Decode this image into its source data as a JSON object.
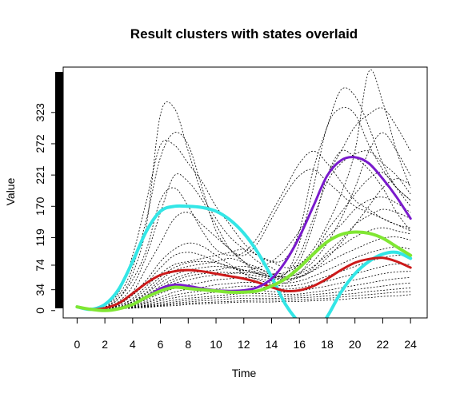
{
  "chart_data": {
    "type": "line",
    "title": "Result clusters with states overlaid",
    "xlabel": "Time",
    "ylabel": "Value",
    "xlim": [
      -1,
      25.2
    ],
    "ylim": [
      -12,
      397
    ],
    "x_ticks": [
      0,
      2,
      4,
      6,
      8,
      10,
      12,
      14,
      16,
      18,
      20,
      22,
      24
    ],
    "y_ticks": [
      0,
      34,
      74,
      119,
      170,
      221,
      272,
      323
    ],
    "x": [
      0,
      1,
      2,
      3,
      4,
      5,
      6,
      7,
      8,
      9,
      10,
      11,
      12,
      13,
      14,
      15,
      16,
      17,
      18,
      19,
      20,
      21,
      22,
      23,
      24
    ],
    "background_series": [
      [
        5,
        3,
        6,
        20,
        60,
        140,
        320,
        330,
        260,
        190,
        150,
        120,
        100,
        80,
        70,
        60,
        110,
        200,
        300,
        330,
        320,
        270,
        230,
        200,
        180
      ],
      [
        5,
        4,
        8,
        30,
        90,
        180,
        270,
        270,
        240,
        210,
        170,
        140,
        110,
        90,
        80,
        85,
        130,
        230,
        300,
        360,
        350,
        300,
        240,
        200,
        170
      ],
      [
        5,
        3,
        5,
        15,
        40,
        90,
        160,
        220,
        210,
        180,
        140,
        100,
        80,
        70,
        60,
        55,
        80,
        140,
        220,
        260,
        250,
        230,
        200,
        160,
        130
      ],
      [
        5,
        2,
        4,
        10,
        30,
        70,
        110,
        150,
        160,
        140,
        120,
        100,
        80,
        60,
        55,
        60,
        90,
        150,
        210,
        240,
        255,
        260,
        240,
        220,
        190
      ],
      [
        5,
        3,
        5,
        12,
        28,
        50,
        80,
        100,
        110,
        105,
        90,
        75,
        60,
        50,
        45,
        45,
        60,
        90,
        130,
        160,
        190,
        215,
        225,
        200,
        180
      ],
      [
        5,
        3,
        4,
        8,
        20,
        40,
        60,
        75,
        80,
        85,
        90,
        95,
        100,
        90,
        80,
        70,
        75,
        95,
        120,
        140,
        165,
        180,
        185,
        175,
        160
      ],
      [
        5,
        2,
        3,
        6,
        15,
        30,
        50,
        65,
        72,
        76,
        80,
        85,
        78,
        65,
        55,
        50,
        55,
        70,
        95,
        115,
        140,
        155,
        165,
        160,
        150
      ],
      [
        5,
        2,
        3,
        6,
        14,
        25,
        40,
        52,
        60,
        64,
        66,
        70,
        72,
        68,
        60,
        55,
        60,
        72,
        90,
        105,
        120,
        130,
        135,
        130,
        125
      ],
      [
        5,
        2,
        3,
        5,
        12,
        20,
        32,
        44,
        50,
        55,
        58,
        60,
        62,
        60,
        55,
        52,
        55,
        65,
        78,
        90,
        100,
        110,
        118,
        120,
        115
      ],
      [
        5,
        2,
        3,
        5,
        10,
        18,
        28,
        36,
        42,
        46,
        50,
        52,
        54,
        52,
        48,
        45,
        48,
        56,
        66,
        76,
        86,
        94,
        100,
        104,
        100
      ],
      [
        5,
        2,
        3,
        5,
        9,
        15,
        22,
        30,
        35,
        38,
        42,
        44,
        46,
        45,
        42,
        40,
        42,
        48,
        56,
        64,
        72,
        80,
        86,
        90,
        88
      ],
      [
        5,
        2,
        3,
        4,
        8,
        13,
        19,
        25,
        29,
        32,
        35,
        38,
        40,
        39,
        37,
        35,
        37,
        42,
        48,
        54,
        60,
        66,
        72,
        76,
        75
      ],
      [
        5,
        2,
        3,
        4,
        7,
        11,
        16,
        21,
        24,
        27,
        30,
        32,
        34,
        33,
        31,
        30,
        32,
        36,
        40,
        45,
        50,
        55,
        60,
        63,
        64
      ],
      [
        5,
        2,
        2,
        4,
        6,
        9,
        13,
        17,
        20,
        22,
        24,
        26,
        28,
        28,
        27,
        26,
        27,
        30,
        33,
        37,
        41,
        45,
        49,
        52,
        54
      ],
      [
        5,
        2,
        2,
        3,
        5,
        8,
        11,
        14,
        17,
        19,
        21,
        22,
        24,
        24,
        23,
        23,
        24,
        26,
        28,
        31,
        34,
        37,
        40,
        43,
        45
      ],
      [
        5,
        2,
        2,
        3,
        5,
        7,
        9,
        12,
        14,
        16,
        17,
        19,
        20,
        20,
        20,
        20,
        21,
        22,
        24,
        26,
        28,
        31,
        33,
        35,
        37
      ],
      [
        5,
        2,
        2,
        3,
        4,
        6,
        8,
        10,
        12,
        13,
        14,
        15,
        16,
        17,
        17,
        17,
        18,
        19,
        20,
        22,
        24,
        26,
        28,
        30,
        31
      ],
      [
        5,
        2,
        2,
        3,
        4,
        5,
        7,
        8,
        10,
        11,
        12,
        13,
        14,
        14,
        14,
        15,
        15,
        16,
        17,
        18,
        20,
        21,
        23,
        24,
        26
      ],
      [
        5,
        3,
        6,
        25,
        70,
        150,
        250,
        290,
        270,
        200,
        130,
        100,
        90,
        110,
        150,
        190,
        220,
        230,
        210,
        190,
        170,
        160,
        150,
        140,
        130
      ],
      [
        5,
        3,
        5,
        20,
        50,
        100,
        180,
        200,
        170,
        130,
        100,
        90,
        95,
        120,
        160,
        200,
        240,
        260,
        240,
        210,
        180,
        165,
        150,
        140,
        135
      ],
      [
        5,
        2,
        4,
        10,
        25,
        45,
        70,
        90,
        95,
        90,
        80,
        70,
        65,
        70,
        80,
        100,
        130,
        170,
        220,
        260,
        300,
        320,
        330,
        300,
        260
      ],
      [
        5,
        2,
        3,
        8,
        18,
        35,
        55,
        70,
        78,
        80,
        78,
        72,
        66,
        62,
        60,
        62,
        75,
        100,
        140,
        190,
        260,
        390,
        340,
        260,
        200
      ],
      [
        5,
        2,
        3,
        6,
        14,
        28,
        45,
        58,
        66,
        70,
        72,
        70,
        66,
        60,
        56,
        55,
        62,
        80,
        110,
        150,
        200,
        260,
        290,
        260,
        220
      ],
      [
        5,
        2,
        3,
        6,
        12,
        22,
        36,
        48,
        56,
        60,
        62,
        62,
        60,
        56,
        52,
        50,
        54,
        66,
        86,
        110,
        140,
        170,
        200,
        215,
        205
      ]
    ],
    "series": [
      {
        "color": "#33e6e6",
        "width": 4,
        "values": [
          6,
          2,
          10,
          35,
          80,
          130,
          162,
          170,
          170,
          168,
          162,
          148,
          126,
          95,
          55,
          10,
          -20,
          -40,
          -10,
          30,
          60,
          80,
          92,
          95,
          85
        ]
      },
      {
        "color": "#cc1a1a",
        "width": 3,
        "values": [
          6,
          2,
          4,
          12,
          28,
          45,
          58,
          64,
          66,
          64,
          60,
          56,
          52,
          46,
          38,
          32,
          33,
          40,
          52,
          66,
          78,
          84,
          86,
          80,
          70
        ]
      },
      {
        "color": "#7a1acc",
        "width": 3,
        "values": [
          6,
          2,
          0,
          3,
          10,
          22,
          36,
          42,
          40,
          36,
          33,
          32,
          33,
          38,
          52,
          80,
          120,
          170,
          220,
          245,
          250,
          240,
          215,
          185,
          150
        ]
      },
      {
        "color": "#80e633",
        "width": 4,
        "values": [
          6,
          2,
          0,
          3,
          10,
          22,
          32,
          38,
          36,
          34,
          32,
          30,
          30,
          32,
          40,
          52,
          70,
          92,
          112,
          124,
          128,
          126,
          118,
          104,
          90
        ]
      }
    ],
    "legend": "none",
    "grid": false
  }
}
